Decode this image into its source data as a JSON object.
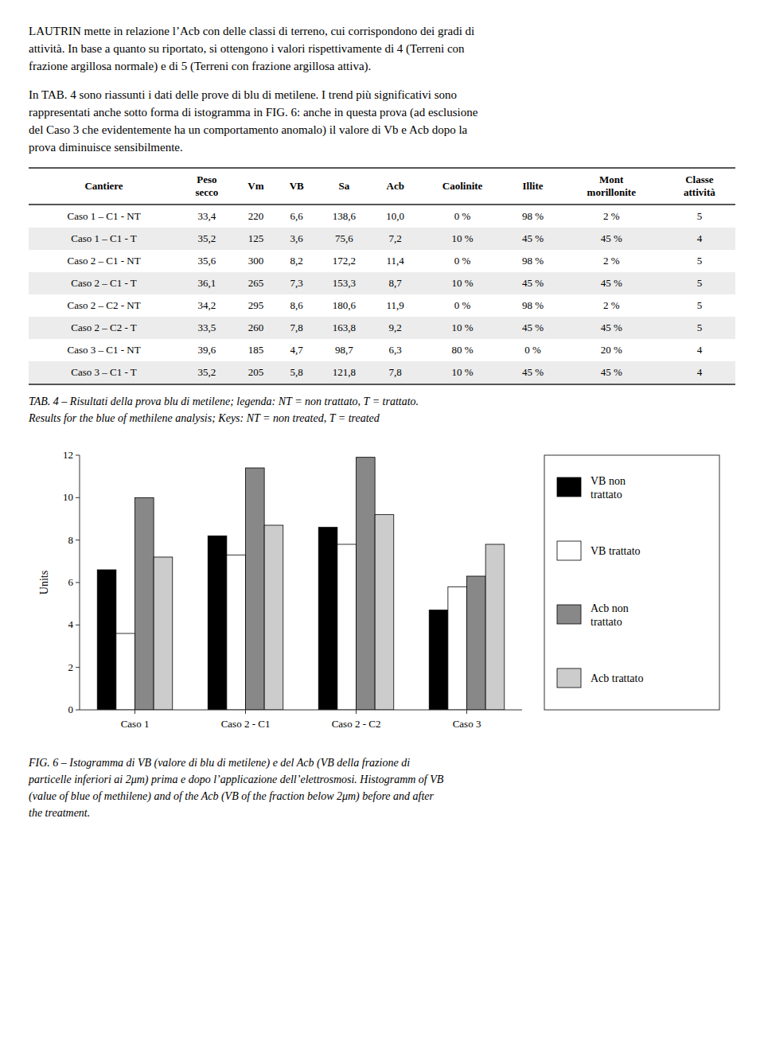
{
  "paragraphs": [
    [
      "LAUTRIN mette in relazione l’Acb con delle classi di terreno, cui corrispondono dei gradi di",
      "attività. In base a quanto su riportato, si ottengono i valori rispettivamente di 4 (Terreni con",
      "frazione argillosa normale) e di 5 (Terreni con frazione argillosa attiva)."
    ],
    [
      "In TAB. 4 sono riassunti i dati delle prove di blu di metilene. I trend più significativi sono",
      "rappresentati anche sotto forma di istogramma in FIG. 6: anche in questa prova (ad esclusione",
      "del Caso 3 che evidentemente ha un comportamento anomalo) il valore di Vb e Acb dopo la",
      "prova diminuisce sensibilmente."
    ]
  ],
  "table": {
    "header": [
      "Cantiere",
      "Peso\nsecco",
      "Vm",
      "VB",
      "Sa",
      "Acb",
      "Caolinite",
      "Illite",
      "Mont\nmorillonite",
      "Classe\nattività"
    ],
    "rows": [
      [
        "Caso 1 – C1 - NT",
        "33,4",
        "220",
        "6,6",
        "138,6",
        "10,0",
        "0 %",
        "98 %",
        "2 %",
        "5"
      ],
      [
        "Caso 1 – C1 - T",
        "35,2",
        "125",
        "3,6",
        "75,6",
        "7,2",
        "10 %",
        "45 %",
        "45 %",
        "4"
      ],
      [
        "Caso 2 – C1 - NT",
        "35,6",
        "300",
        "8,2",
        "172,2",
        "11,4",
        "0 %",
        "98 %",
        "2 %",
        "5"
      ],
      [
        "Caso 2 – C1 - T",
        "36,1",
        "265",
        "7,3",
        "153,3",
        "8,7",
        "10 %",
        "45 %",
        "45 %",
        "5"
      ],
      [
        "Caso 2 – C2 - NT",
        "34,2",
        "295",
        "8,6",
        "180,6",
        "11,9",
        "0 %",
        "98 %",
        "2 %",
        "5"
      ],
      [
        "Caso 2 – C2 - T",
        "33,5",
        "260",
        "7,8",
        "163,8",
        "9,2",
        "10 %",
        "45 %",
        "45 %",
        "5"
      ],
      [
        "Caso 3 – C1 - NT",
        "39,6",
        "185",
        "4,7",
        "98,7",
        "6,3",
        "80 %",
        "0 %",
        "20 %",
        "4"
      ],
      [
        "Caso 3 – C1 - T",
        "35,2",
        "205",
        "5,8",
        "121,8",
        "7,8",
        "10 %",
        "45 %",
        "45 %",
        "4"
      ]
    ],
    "caption": [
      "TAB. 4 – Risultati della prova blu di metilene; legenda: NT = non trattato, T = trattato.",
      "Results for the blue of methilene analysis; Keys: NT = non treated, T = treated"
    ]
  },
  "chart_data": {
    "type": "bar",
    "categories": [
      "Caso 1",
      "Caso 2 - C1",
      "Caso 2 - C2",
      "Caso 3"
    ],
    "series": [
      {
        "name": "VB non\ntrattato",
        "color": "#000000",
        "values": [
          6.6,
          8.2,
          8.6,
          4.7
        ]
      },
      {
        "name": "VB trattato",
        "color": "#ffffff",
        "values": [
          3.6,
          7.3,
          7.8,
          5.8
        ]
      },
      {
        "name": "Acb non\ntrattato",
        "color": "#888888",
        "values": [
          10.0,
          11.4,
          11.9,
          6.3
        ]
      },
      {
        "name": "Acb trattato",
        "color": "#cccccc",
        "values": [
          7.2,
          8.7,
          9.2,
          7.8
        ]
      }
    ],
    "ylabel": "Units",
    "ylim": [
      0,
      12
    ],
    "yticks": [
      0,
      2,
      4,
      6,
      8,
      10,
      12
    ]
  },
  "figure_caption": [
    "FIG. 6 – Istogramma di VB (valore di blu di metilene) e del Acb (VB della frazione di",
    "particelle inferiori ai 2μm) prima e dopo l’applicazione dell’elettrosmosi. Histogramm of VB",
    "(value of blue of methilene) and of the Acb (VB of the fraction below 2μm) before and after",
    "the treatment."
  ]
}
